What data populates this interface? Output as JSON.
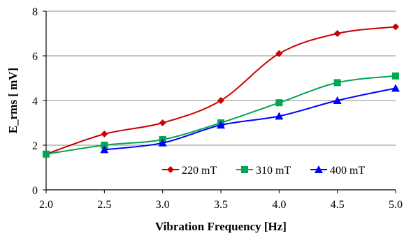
{
  "chart_data": {
    "type": "line",
    "title": "",
    "xlabel": "Vibration Frequency [Hz]",
    "ylabel": "E_rms [ mV]",
    "xlim": [
      2.0,
      5.0
    ],
    "ylim": [
      0,
      8
    ],
    "x_ticks": [
      "2.0",
      "2.5",
      "3.0",
      "3.5",
      "4.0",
      "4.5",
      "5.0"
    ],
    "y_ticks": [
      "0",
      "2",
      "4",
      "6",
      "8"
    ],
    "grid": "horizontal",
    "legend_position": "bottom-right",
    "series": [
      {
        "name": "220 mT",
        "color": "#cc0000",
        "marker": "diamond",
        "x": [
          2.0,
          2.5,
          3.0,
          3.5,
          4.0,
          4.5,
          5.0
        ],
        "y": [
          1.6,
          2.5,
          3.0,
          4.0,
          6.1,
          7.0,
          7.3
        ]
      },
      {
        "name": "310 mT",
        "color": "#00a651",
        "marker": "square",
        "x": [
          2.0,
          2.5,
          3.0,
          3.5,
          4.0,
          4.5,
          5.0
        ],
        "y": [
          1.6,
          2.0,
          2.25,
          3.0,
          3.9,
          4.8,
          5.1
        ]
      },
      {
        "name": "400 mT",
        "color": "#0000ff",
        "marker": "triangle",
        "x": [
          2.5,
          3.0,
          3.5,
          4.0,
          4.5,
          5.0
        ],
        "y": [
          1.8,
          2.1,
          2.9,
          3.3,
          4.0,
          4.55
        ]
      }
    ]
  }
}
